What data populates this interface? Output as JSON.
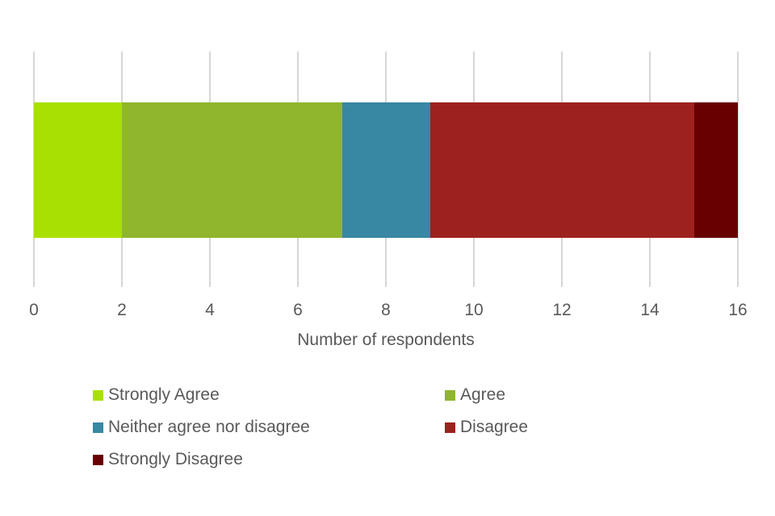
{
  "chart_data": {
    "type": "bar",
    "orientation": "horizontal",
    "stacked": true,
    "title": "",
    "xlabel": "Number of respondents",
    "ylabel": "",
    "xlim": [
      0,
      16
    ],
    "xticks": [
      0,
      2,
      4,
      6,
      8,
      10,
      12,
      14,
      16
    ],
    "grid": true,
    "legend_position": "bottom",
    "series": [
      {
        "name": "Strongly Agree",
        "value": 2,
        "color": "#a9e004"
      },
      {
        "name": "Agree",
        "value": 5,
        "color": "#8fb62d"
      },
      {
        "name": "Neither agree nor disagree",
        "value": 2,
        "color": "#3887a3"
      },
      {
        "name": "Disagree",
        "value": 6,
        "color": "#9d221e"
      },
      {
        "name": "Strongly Disagree",
        "value": 1,
        "color": "#680002"
      }
    ]
  },
  "axis": {
    "x_title": "Number of respondents"
  },
  "colors": {
    "background": "#ffffff",
    "gridline": "#d7d7d7",
    "text": "#595959"
  }
}
